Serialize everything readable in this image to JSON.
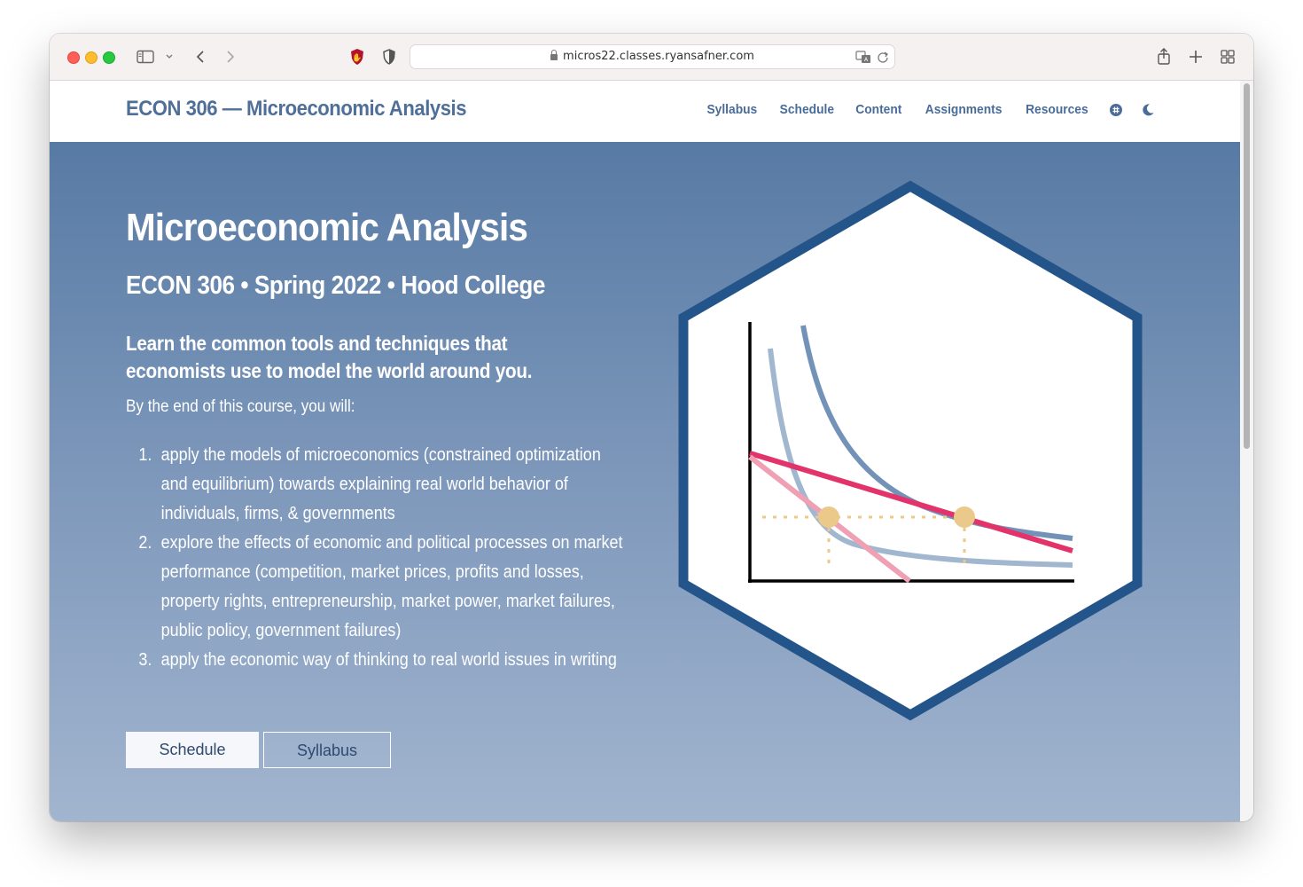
{
  "browser": {
    "url": "micros22.classes.ryansafner.com"
  },
  "site": {
    "brand": "ECON 306 — Microeconomic Analysis",
    "nav": [
      {
        "label": "Syllabus"
      },
      {
        "label": "Schedule"
      },
      {
        "label": "Content"
      },
      {
        "label": "Assignments"
      },
      {
        "label": "Resources"
      }
    ]
  },
  "hero": {
    "title": "Microeconomic Analysis",
    "subtitle": "ECON 306 • Spring 2022 • Hood College",
    "lead": "Learn the common tools and techniques that economists use to model the world around you.",
    "intro": "By the end of this course, you will:",
    "goals": [
      {
        "num": "1.",
        "text": "apply the models of microeconomics (constrained optimization and equilibrium) towards explaining real world behavior of individuals, firms, & governments"
      },
      {
        "num": "2.",
        "text": "explore the effects of economic and political processes on market performance (competition, market prices, profits and losses, property rights, entrepreneurship, market power, market failures, public policy, government failures)"
      },
      {
        "num": "3.",
        "text": "apply the economic way of thinking to real world issues in writing"
      }
    ],
    "buttons": {
      "schedule": "Schedule",
      "syllabus": "Syllabus"
    }
  },
  "colors": {
    "brand": "#4f6f99",
    "hex_border": "#24558a",
    "curve_light": "#a1b6cf",
    "curve_mid": "#7392b8",
    "budget_red": "#e2346a",
    "budget_pink": "#efa0b3",
    "point_gold": "#eac98a"
  },
  "icons": {
    "logo_hex": "indifference-curve-hex-icon"
  }
}
